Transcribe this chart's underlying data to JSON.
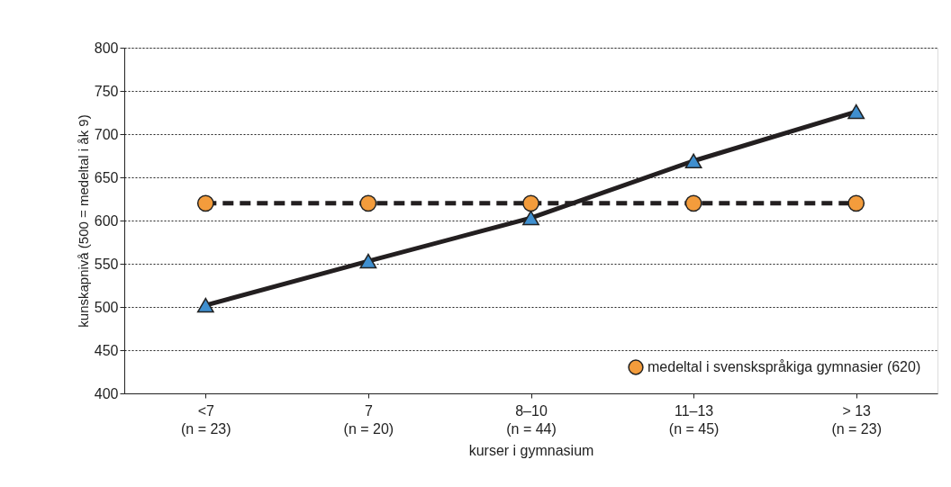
{
  "chart_data": {
    "type": "line",
    "categories": [
      "<7\n(n = 23)",
      "7\n(n = 20)",
      "8–10\n(n = 44)",
      "11–13\n(n = 45)",
      "> 13\n(n = 23)"
    ],
    "xlabel": "kurser i gymnasium",
    "ylabel": "kunskapnivå (500 = medeltal i åk 9)",
    "ylim": [
      400,
      800
    ],
    "yticks": [
      400,
      450,
      500,
      550,
      600,
      650,
      700,
      750,
      800
    ],
    "grid": "y",
    "legend": "bottom right",
    "series": [
      {
        "color": "#3f8fcf",
        "marker": "triangle",
        "line_style": "solid",
        "values": [
          502,
          553,
          603,
          669,
          726
        ]
      },
      {
        "name": "medeltal i svenskspråkiga gymnasier (620)",
        "color": "#f39c3c",
        "marker": "circle",
        "line_style": "dashed",
        "values": [
          620,
          620,
          620,
          620,
          620
        ]
      }
    ]
  }
}
